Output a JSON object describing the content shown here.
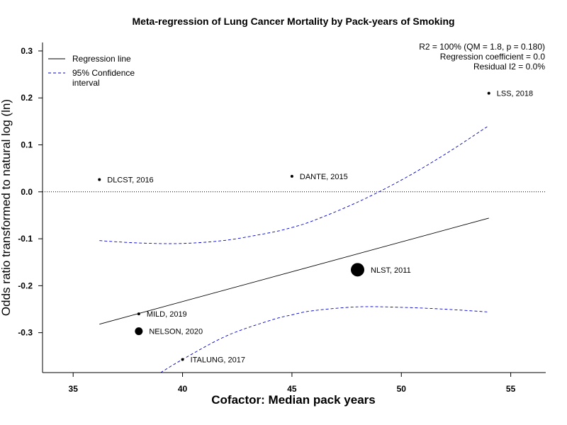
{
  "chart_data": {
    "type": "scatter",
    "title": "Meta-regression of  Lung Cancer Mortality by Pack-years of Smoking",
    "xlabel": "Cofactor:  Median pack years",
    "ylabel": "Odds ratio transformed to natural log (ln)",
    "xlim": [
      33.6,
      56.6
    ],
    "ylim": [
      -0.385,
      0.318
    ],
    "x_ticks": [
      35,
      40,
      45,
      50,
      55
    ],
    "y_ticks": [
      -0.3,
      -0.2,
      -0.1,
      0.0,
      0.1,
      0.2,
      0.3
    ],
    "x_tick_labels": [
      "35",
      "40",
      "45",
      "50",
      "55"
    ],
    "y_tick_labels": [
      "-0.3",
      "-0.2",
      "-0.1",
      "0.0",
      "0.1",
      "0.2",
      "0.3"
    ],
    "reference_line_y": 0.0,
    "points": [
      {
        "label": "DLCST, 2016",
        "x": 36.2,
        "y": 0.026,
        "weight": "small"
      },
      {
        "label": "DANTE, 2015",
        "x": 45.0,
        "y": 0.033,
        "weight": "small"
      },
      {
        "label": "LSS, 2018",
        "x": 54.0,
        "y": 0.21,
        "weight": "small"
      },
      {
        "label": "NLST, 2011",
        "x": 48.0,
        "y": -0.166,
        "weight": "large"
      },
      {
        "label": "MILD, 2019",
        "x": 38.0,
        "y": -0.26,
        "weight": "small"
      },
      {
        "label": "NELSON, 2020",
        "x": 38.0,
        "y": -0.297,
        "weight": "medium"
      },
      {
        "label": "ITALUNG, 2017",
        "x": 40.0,
        "y": -0.357,
        "weight": "small"
      }
    ],
    "regression_line": {
      "x": [
        36.2,
        54.0
      ],
      "y": [
        -0.282,
        -0.056
      ]
    },
    "ci_upper": {
      "x": [
        36.2,
        38,
        40,
        42,
        44,
        45,
        46,
        48,
        50,
        52,
        54
      ],
      "y": [
        -0.104,
        -0.109,
        -0.11,
        -0.103,
        -0.087,
        -0.076,
        -0.061,
        -0.022,
        0.025,
        0.08,
        0.141
      ]
    },
    "ci_lower": {
      "x": [
        39.0,
        40,
        42,
        44,
        45,
        46,
        48,
        50,
        52,
        54
      ],
      "y": [
        -0.385,
        -0.357,
        -0.307,
        -0.274,
        -0.262,
        -0.253,
        -0.245,
        -0.246,
        -0.25,
        -0.256
      ]
    },
    "legend": {
      "placement": "top-left",
      "entries": [
        {
          "label_lines": [
            "Regression line"
          ],
          "style": "solid",
          "color": "#000000"
        },
        {
          "label_lines": [
            "95% Confidence",
            "interval"
          ],
          "style": "dashed",
          "color": "#0000cc"
        }
      ]
    },
    "stats_text": [
      "R2 = 100% (QM = 1.8, p = 0.180)",
      "Regression coefficient = 0.0",
      "Residual I2 = 0.0%"
    ],
    "colors": {
      "regression": "#000000",
      "ci": "#0000cc",
      "points": "#000000"
    }
  }
}
